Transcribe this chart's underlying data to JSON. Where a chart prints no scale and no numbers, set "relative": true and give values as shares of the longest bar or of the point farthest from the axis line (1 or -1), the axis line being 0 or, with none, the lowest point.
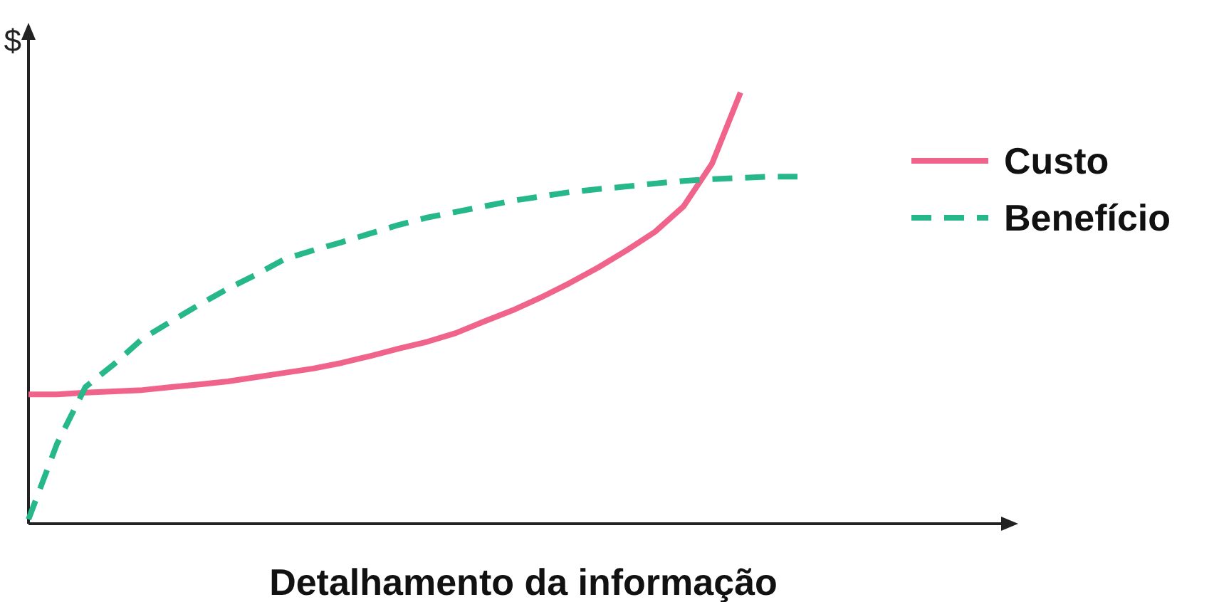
{
  "chart_data": {
    "type": "line",
    "relative": true,
    "xlabel": "Detalhamento da informação",
    "ylabel": "$",
    "legend": "right",
    "categories": [
      null,
      null,
      null,
      null,
      null,
      null,
      null,
      null,
      null,
      null,
      null,
      null,
      null,
      null,
      null,
      null,
      null,
      null,
      null,
      null,
      null,
      null,
      null,
      null,
      null,
      null,
      null,
      null
    ],
    "series": [
      {
        "name": "Custo",
        "color": "#f0648c",
        "line_style": "solid",
        "values": [
          0.3,
          0.3,
          0.304,
          0.307,
          0.31,
          0.317,
          0.323,
          0.33,
          0.34,
          0.35,
          0.36,
          0.373,
          0.389,
          0.406,
          0.422,
          0.442,
          0.469,
          0.495,
          0.525,
          0.558,
          0.594,
          0.634,
          0.677,
          0.736,
          0.835,
          1,
          null,
          null
        ]
      },
      {
        "name": "Benefício",
        "color": "#26b88a",
        "line_style": "dashed",
        "values": [
          0.01,
          0.185,
          0.317,
          0.37,
          0.429,
          0.469,
          0.508,
          0.545,
          0.578,
          0.614,
          0.634,
          0.653,
          0.673,
          0.693,
          0.71,
          0.723,
          0.736,
          0.749,
          0.759,
          0.769,
          0.776,
          0.782,
          0.789,
          0.795,
          0.799,
          0.802,
          0.805,
          0.805
        ]
      }
    ]
  }
}
